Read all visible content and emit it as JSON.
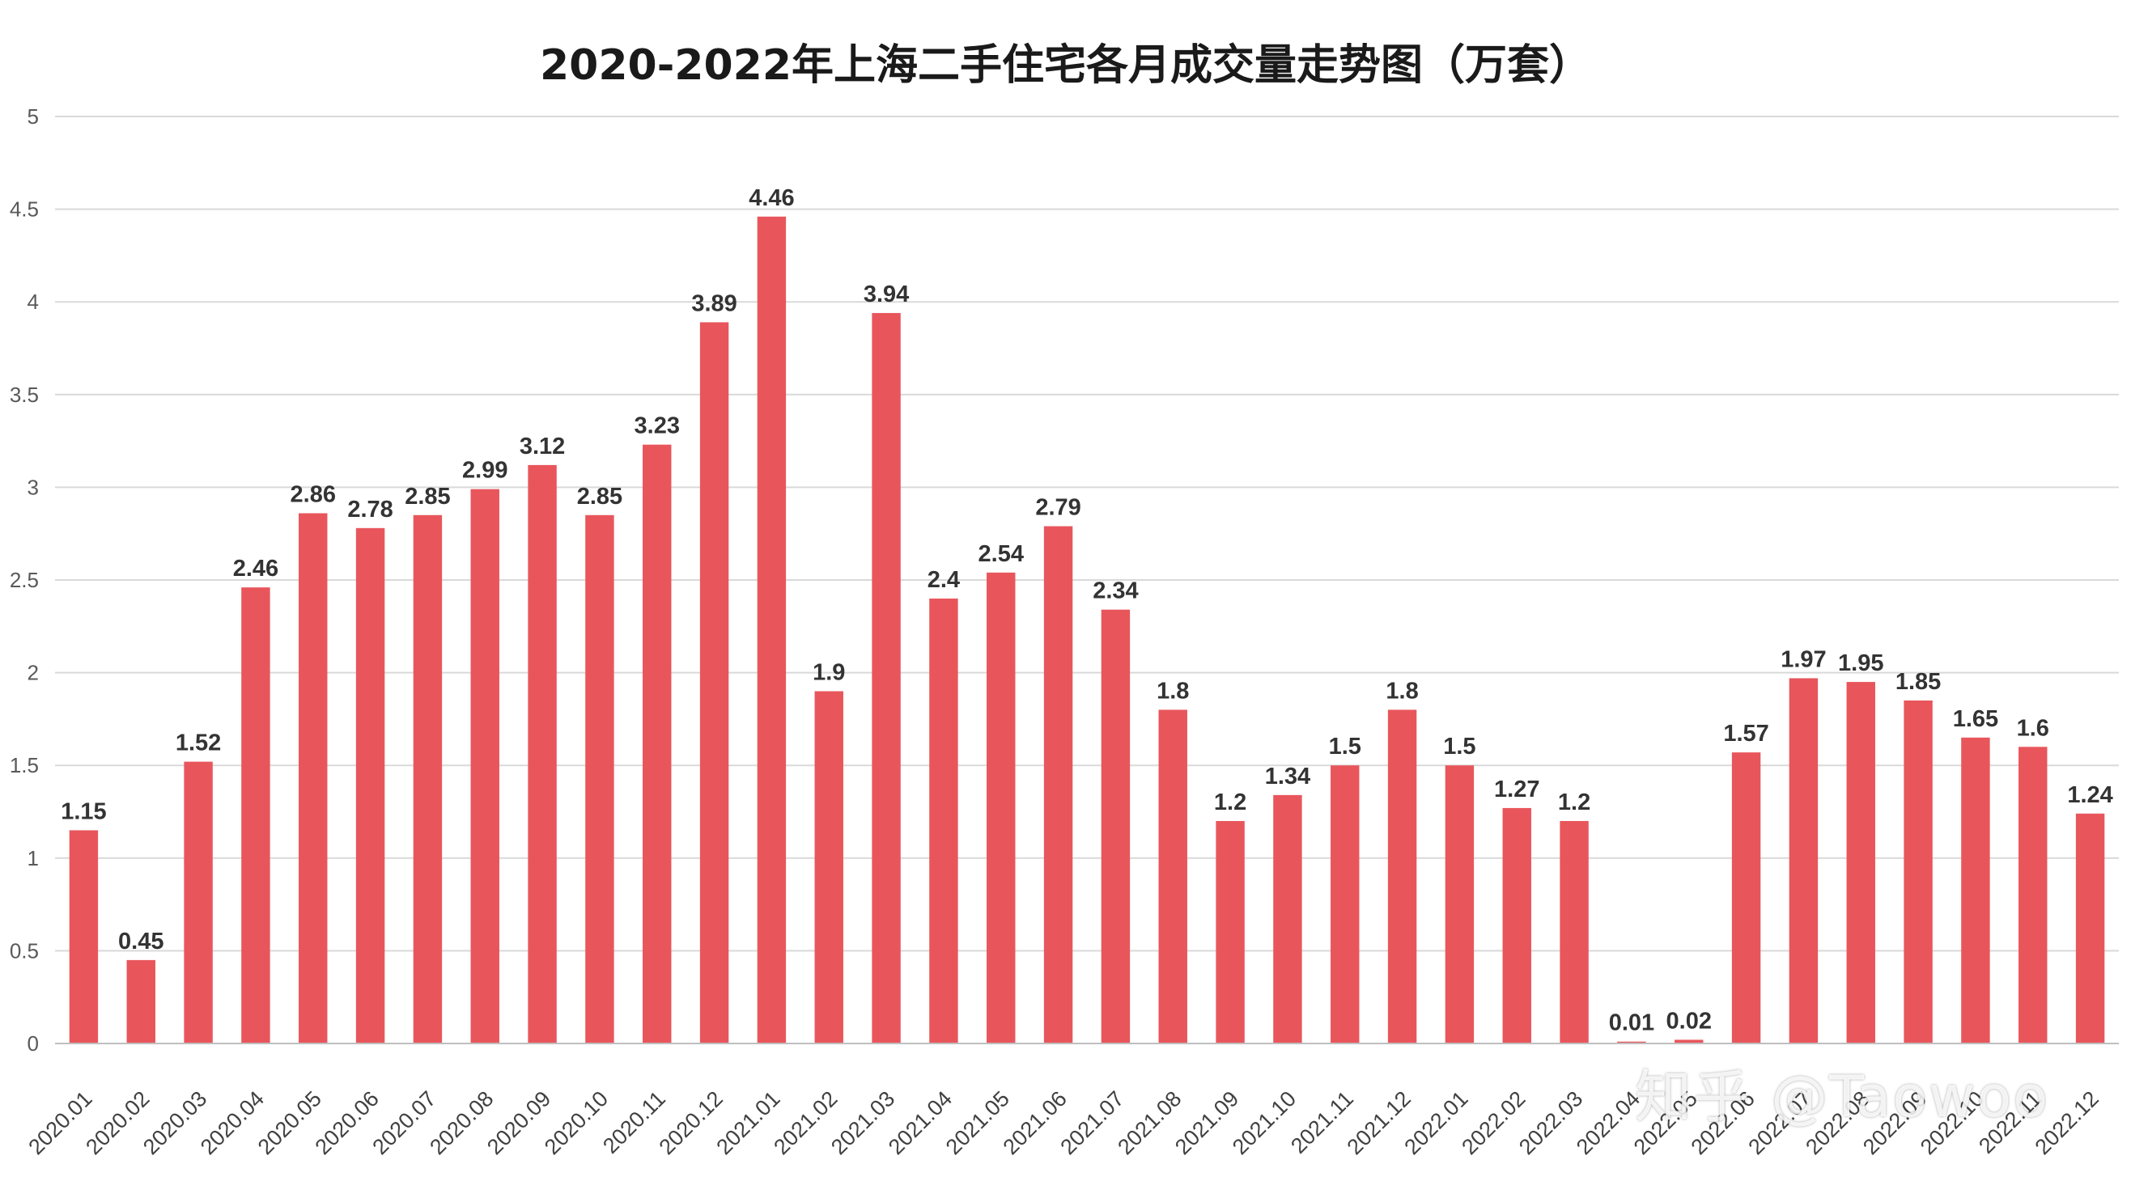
{
  "chart_data": {
    "type": "bar",
    "title": "2020-2022年上海二手住宅各月成交量走势图（万套）",
    "xlabel": "",
    "ylabel": "",
    "ylim": [
      0,
      5
    ],
    "yticks": [
      0,
      0.5,
      1,
      1.5,
      2,
      2.5,
      3,
      3.5,
      4,
      4.5,
      5
    ],
    "ytick_labels": [
      "0",
      "0.5",
      "1",
      "1.5",
      "2",
      "2.5",
      "3",
      "3.5",
      "4",
      "4.5",
      "5"
    ],
    "grid": true,
    "legend": "none",
    "bar_color": "#e8565c",
    "categories": [
      "2020.01",
      "2020.02",
      "2020.03",
      "2020.04",
      "2020.05",
      "2020.06",
      "2020.07",
      "2020.08",
      "2020.09",
      "2020.10",
      "2020.11",
      "2020.12",
      "2021.01",
      "2021.02",
      "2021.03",
      "2021.04",
      "2021.05",
      "2021.06",
      "2021.07",
      "2021.08",
      "2021.09",
      "2021.10",
      "2021.11",
      "2021.12",
      "2022.01",
      "2022.02",
      "2022.03",
      "2022.04",
      "2022.05",
      "2022.06",
      "2022.07",
      "2022.08",
      "2022.09",
      "2022.10",
      "2022.11",
      "2022.12"
    ],
    "values": [
      1.15,
      0.45,
      1.52,
      2.46,
      2.86,
      2.78,
      2.85,
      2.99,
      3.12,
      2.85,
      3.23,
      3.89,
      4.46,
      1.9,
      3.94,
      2.4,
      2.54,
      2.79,
      2.34,
      1.8,
      1.2,
      1.34,
      1.5,
      1.8,
      1.5,
      1.27,
      1.2,
      0.01,
      0.02,
      1.57,
      1.97,
      1.95,
      1.85,
      1.65,
      1.6,
      1.24
    ],
    "data_labels": [
      "1.15",
      "0.45",
      "1.52",
      "2.46",
      "2.86",
      "2.78",
      "2.85",
      "2.99",
      "3.12",
      "2.85",
      "3.23",
      "3.89",
      "4.46",
      "1.9",
      "3.94",
      "2.4",
      "2.54",
      "2.79",
      "2.34",
      "1.8",
      "1.2",
      "1.34",
      "1.5",
      "1.8",
      "1.5",
      "1.27",
      "1.2",
      "0.01",
      "0.02",
      "1.57",
      "1.97",
      "1.95",
      "1.85",
      "1.65",
      "1.6",
      "1.24"
    ]
  },
  "watermark": "知乎 @Taowoo"
}
